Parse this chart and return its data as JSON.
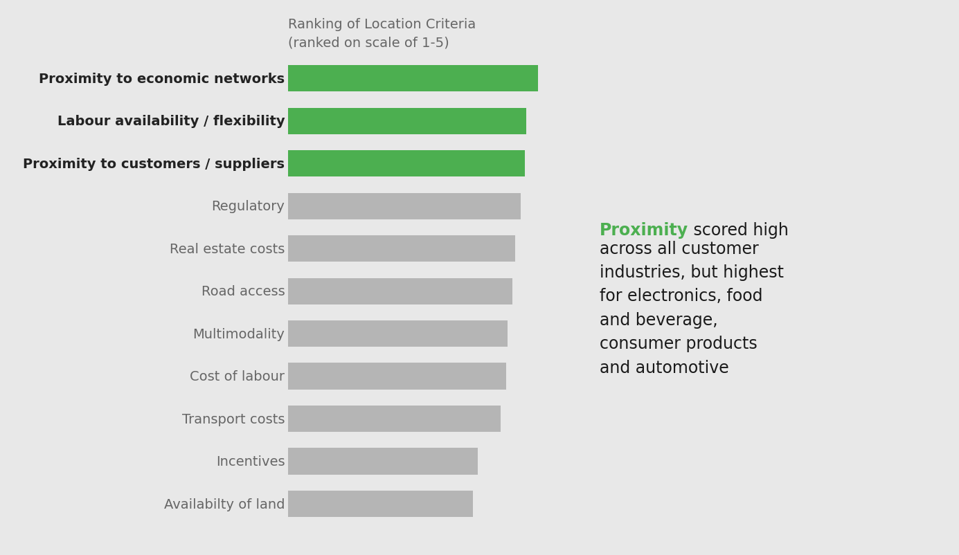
{
  "categories": [
    "Proximity to economic networks",
    "Labour availability / flexibility",
    "Proximity to customers / suppliers",
    "Regulatory",
    "Real estate costs",
    "Road access",
    "Multimodality",
    "Cost of labour",
    "Transport costs",
    "Incentives",
    "Availabilty of land"
  ],
  "values": [
    4.35,
    4.15,
    4.12,
    4.05,
    3.95,
    3.9,
    3.82,
    3.8,
    3.7,
    3.3,
    3.22
  ],
  "bar_colors": [
    "#4caf50",
    "#4caf50",
    "#4caf50",
    "#b5b5b5",
    "#b5b5b5",
    "#b5b5b5",
    "#b5b5b5",
    "#b5b5b5",
    "#b5b5b5",
    "#b5b5b5",
    "#b5b5b5"
  ],
  "title_line1": "Ranking of Location Criteria",
  "title_line2": "(ranked on scale of 1-5)",
  "background_color": "#e8e8e8",
  "annotation_bold": "Proximity",
  "annotation_rest": " scored high\nacross all customer\nindustries, but highest\nfor electronics, food\nand beverage,\nconsumer products\nand automotive",
  "annotation_bold_color": "#4caf50",
  "annotation_text_color": "#1a1a1a",
  "bar_height": 0.62,
  "xlim": [
    0,
    5
  ],
  "title_fontsize": 14,
  "label_fontsize": 14,
  "annotation_fontsize": 17
}
